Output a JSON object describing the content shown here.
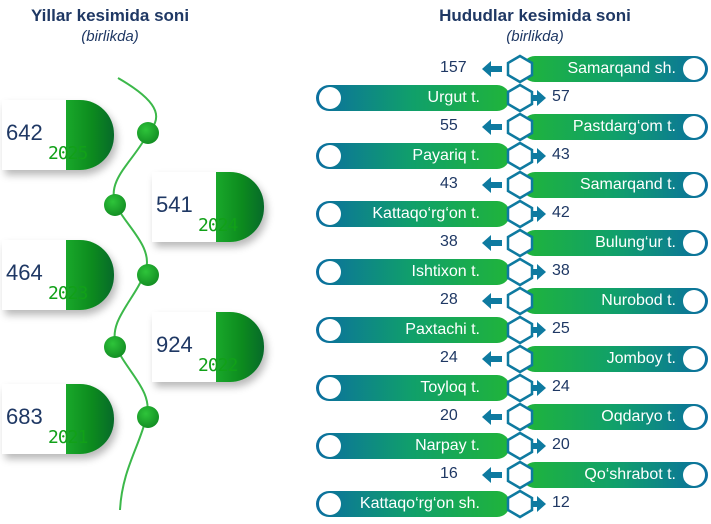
{
  "left_panel": {
    "title": "Yillar kesimida soni",
    "subtitle": "(birlikda)"
  },
  "right_panel": {
    "title": "Hududlar kesimida soni",
    "subtitle": "(birlikda)"
  },
  "chart_data": [
    {
      "type": "bar",
      "title": "Yillar kesimida soni",
      "subtitle": "(birlikda)",
      "categories": [
        "2025",
        "2024",
        "2023",
        "2022",
        "2021"
      ],
      "values": [
        642,
        541,
        464,
        924,
        683
      ]
    },
    {
      "type": "bar",
      "title": "Hududlar kesimida soni",
      "subtitle": "(birlikda)",
      "categories": [
        "Samarqand sh.",
        "Urgut t.",
        "Pastdarg‘om t.",
        "Payariq t.",
        "Samarqand t.",
        "Kattaqo‘rg‘on t.",
        "Bulung‘ur t.",
        "Ishtixon t.",
        "Nurobod t.",
        "Paxtachi t.",
        "Jomboy t.",
        "Toyloq t.",
        "Oqdaryo t.",
        "Narpay t.",
        "Qo‘shrabot t.",
        "Kattaqo‘rg‘on sh."
      ],
      "values": [
        157,
        57,
        55,
        43,
        43,
        42,
        38,
        38,
        28,
        25,
        24,
        24,
        20,
        20,
        16,
        12
      ]
    }
  ],
  "colors": {
    "title": "#1f3864",
    "green": "#11a018",
    "bar_start": "#0b6fa0",
    "bar_end": "#20b43a",
    "hex": "#0e7aa0"
  }
}
